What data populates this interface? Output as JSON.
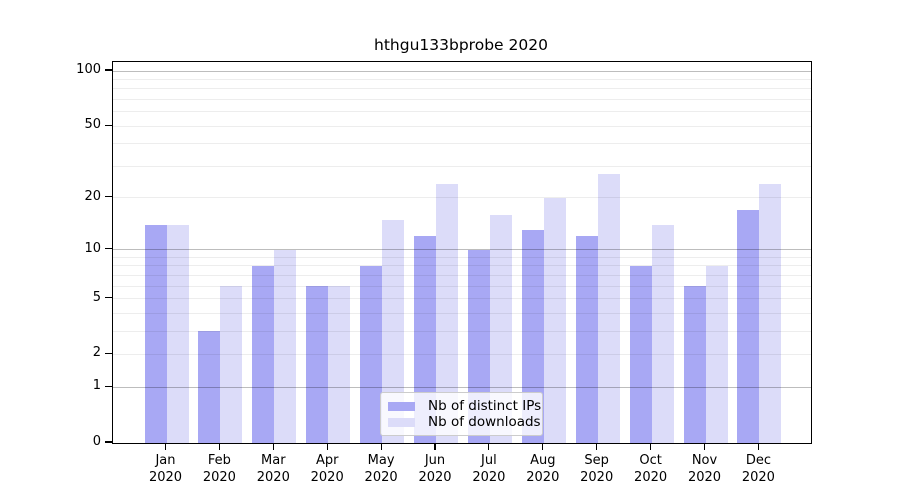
{
  "chart_data": {
    "type": "bar",
    "title": "hthgu133bprobe 2020",
    "categories": [
      "Jan",
      "Feb",
      "Mar",
      "Apr",
      "May",
      "Jun",
      "Jul",
      "Aug",
      "Sep",
      "Oct",
      "Nov",
      "Dec"
    ],
    "year": "2020",
    "series": [
      {
        "name": "Nb of distinct IPs",
        "color": "#a8a8f4",
        "values": [
          14,
          3,
          8,
          6,
          8,
          12,
          10,
          13,
          12,
          8,
          6,
          17
        ]
      },
      {
        "name": "Nb of downloads",
        "color": "#dcdcf9",
        "values": [
          14,
          6,
          10,
          6,
          15,
          24,
          16,
          20,
          27,
          14,
          8,
          24
        ]
      }
    ],
    "scale": "log1p",
    "ylim": [
      0,
      112
    ],
    "yticks": [
      0,
      1,
      2,
      5,
      10,
      20,
      50,
      100
    ],
    "gridlines": {
      "major": [
        1,
        10,
        100
      ],
      "minor": [
        2,
        3,
        4,
        5,
        6,
        7,
        8,
        9,
        20,
        30,
        40,
        50,
        60,
        70,
        80,
        90
      ]
    },
    "grid": true,
    "legend_position": "bottom-center"
  },
  "legend": {
    "items": [
      {
        "label": "Nb of distinct IPs"
      },
      {
        "label": "Nb of downloads"
      }
    ]
  }
}
